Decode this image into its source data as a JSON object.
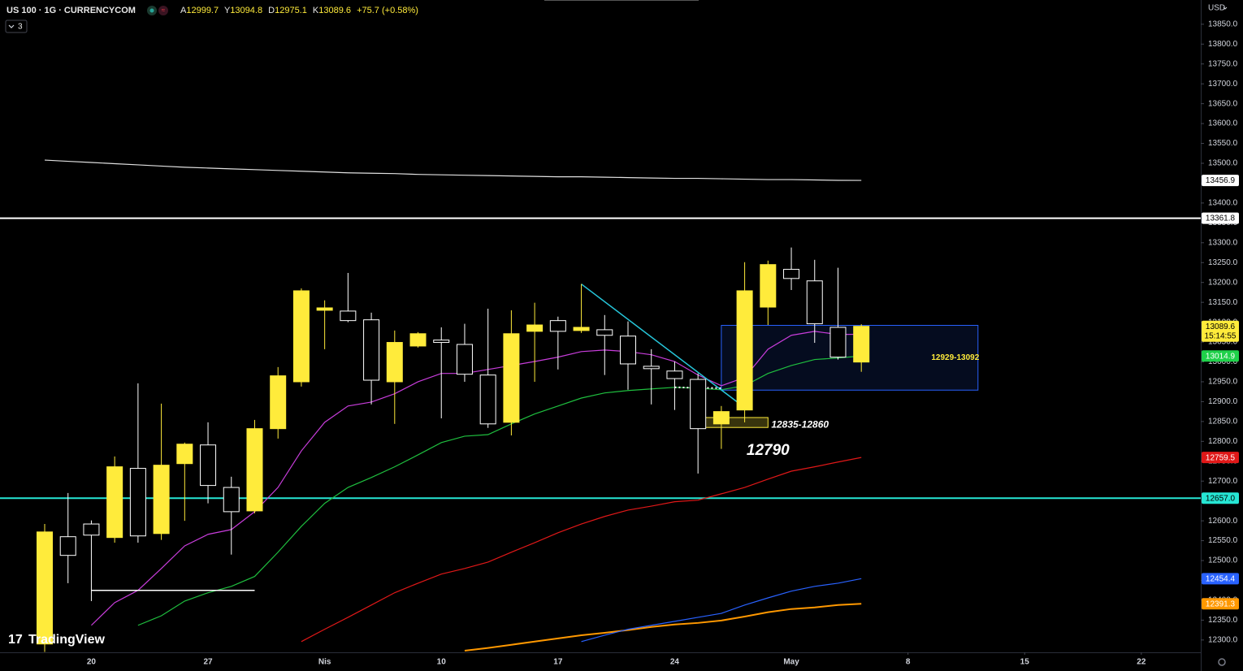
{
  "chart_data": {
    "type": "candlestick",
    "symbol": "US 100 · 1G · CURRENCYCOM",
    "ohlc_labels": [
      "A",
      "Y",
      "D",
      "K"
    ],
    "change": "+75.7 (+0.58%)",
    "indicator_count": "3",
    "currency": "USD",
    "countdown": "15:14:55",
    "logo": "TradingView",
    "categories": [
      null,
      null,
      "20",
      null,
      null,
      null,
      null,
      "27",
      null,
      null,
      null,
      null,
      "Nis",
      null,
      null,
      null,
      null,
      "10",
      null,
      null,
      null,
      null,
      "17",
      null,
      null,
      null,
      null,
      "24",
      null,
      null,
      null,
      null,
      "May",
      null,
      null,
      null
    ],
    "xticks_future": [
      {
        "value": 37,
        "label": "8"
      },
      {
        "value": 42,
        "label": "15"
      },
      {
        "value": 47,
        "label": "22"
      }
    ],
    "candles": {
      "open": [
        12290,
        12560,
        12592,
        12558,
        12732,
        12568,
        12744,
        12791,
        12684,
        12625,
        12832,
        12950,
        13130,
        13128,
        13106,
        12950,
        13040,
        13055,
        13044,
        12967,
        12848,
        13077,
        13104,
        13079,
        13081,
        13065,
        12989,
        12977,
        12956,
        12844,
        12879,
        13138,
        13233,
        13204,
        13087,
        12999.7
      ],
      "high": [
        12592,
        12670,
        12601,
        12762,
        12946,
        12895,
        12797,
        12848,
        12711,
        12854,
        12987,
        13185,
        13155,
        13224,
        13124,
        13079,
        13075,
        13087,
        13096,
        13134,
        13130,
        13149,
        13114,
        13196,
        13118,
        13102,
        13032,
        13001,
        12971,
        12889,
        13251,
        13255,
        13288,
        13257,
        13237,
        13094.8
      ],
      "low": [
        12270,
        12443,
        12398,
        12545,
        12545,
        12552,
        12600,
        12644,
        12515,
        12619,
        12807,
        12938,
        13032,
        13100,
        12893,
        12844,
        13036,
        12858,
        12950,
        12834,
        12815,
        12950,
        12981,
        13073,
        12967,
        12930,
        12893,
        12879,
        12719,
        12781,
        12848,
        13093,
        13181,
        13048,
        13006,
        12975.1
      ],
      "close": [
        12572,
        12513,
        12564,
        12736,
        12562,
        12740,
        12793,
        12689,
        12623,
        12832,
        12965,
        13179,
        13136,
        13104,
        12954,
        13049,
        13071,
        13049,
        12969,
        12844,
        13071,
        13093,
        13077,
        13087,
        13067,
        12995,
        12983,
        12958,
        12832,
        12875,
        13179,
        13245,
        13210,
        13096,
        13012,
        13089.6
      ],
      "up_color": "#ffeb3b",
      "down_color": "#ffffff"
    },
    "series": [
      {
        "color": "#e0e0e0",
        "label_bg": "#ffffff",
        "values": [
          13508,
          13505,
          13502,
          13499,
          13496,
          13493,
          13490,
          13488,
          13486,
          13484,
          13482,
          13480,
          13478,
          13476,
          13475,
          13474,
          13472,
          13471,
          13470,
          13469,
          13468,
          13467,
          13466,
          13466,
          13465,
          13464,
          13463,
          13462,
          13462,
          13461,
          13460,
          13459,
          13459,
          13458,
          13457,
          13456.9
        ]
      },
      {
        "color": "#c83ddb",
        "label_bg": "#e040fb",
        "values": [
          null,
          null,
          12337,
          12394,
          12425,
          12480,
          12537,
          12566,
          12578,
          12623,
          12684,
          12776,
          12848,
          12889,
          12899,
          12920,
          12950,
          12971,
          12971,
          12981,
          12991,
          13001,
          13012,
          13026,
          13030,
          13026,
          13018,
          13001,
          12967,
          12940,
          12961,
          13032,
          13067,
          13077,
          13069,
          13069.7
        ]
      },
      {
        "color": "#1fbf3f",
        "label_bg": "#1fd14a",
        "values": [
          null,
          null,
          null,
          null,
          12337,
          12361,
          12398,
          12419,
          12435,
          12460,
          12521,
          12586,
          12644,
          12684,
          12709,
          12736,
          12766,
          12797,
          12813,
          12817,
          12844,
          12869,
          12889,
          12909,
          12922,
          12928,
          12932,
          12936,
          12934,
          12930,
          12940,
          12971,
          12991,
          13006,
          13010,
          13014.9
        ]
      },
      {
        "color": "#e01818",
        "label_bg": "#e01818",
        "values": [
          null,
          null,
          null,
          null,
          null,
          null,
          null,
          null,
          null,
          null,
          null,
          12296,
          12327,
          12357,
          12388,
          12419,
          12443,
          12466,
          12480,
          12496,
          12521,
          12545,
          12570,
          12592,
          12611,
          12627,
          12637,
          12648,
          12652,
          12668,
          12684,
          12705,
          12725,
          12736,
          12748,
          12759.5
        ]
      },
      {
        "color": "#ff9800",
        "label_bg": "#ff9800",
        "values": [
          null,
          null,
          null,
          null,
          null,
          null,
          null,
          null,
          null,
          null,
          null,
          null,
          null,
          null,
          null,
          null,
          null,
          null,
          12273,
          12280,
          12288,
          12296,
          12304,
          12312,
          12318,
          12325,
          12333,
          12339,
          12343,
          12349,
          12359,
          12370,
          12378,
          12382,
          12388,
          12391.3
        ]
      },
      {
        "color": "#2962ff",
        "label_bg": "#2962ff",
        "values": [
          null,
          null,
          null,
          null,
          null,
          null,
          null,
          null,
          null,
          null,
          null,
          null,
          null,
          null,
          null,
          null,
          null,
          null,
          null,
          null,
          null,
          null,
          null,
          12296,
          12312,
          12327,
          12337,
          12347,
          12357,
          12367,
          12388,
          12406,
          12423,
          12435,
          12443,
          12454.4
        ]
      }
    ],
    "levels": [
      {
        "value": 13361.8,
        "color": "#ffffff"
      },
      {
        "value": 12657,
        "label": "12657.0",
        "color": "#26e6d4"
      }
    ],
    "zones": [
      {
        "label": "12929-13092",
        "low": 12929,
        "high": 13092,
        "start": 29,
        "end": 40,
        "color": "#2962ff"
      },
      {
        "label": "12835-12860",
        "low": 12835,
        "high": 12860,
        "start": 28,
        "end": 31,
        "color": "#ffeb3b"
      }
    ],
    "annotations": [
      {
        "text": 12790,
        "x": 31
      }
    ],
    "segments": [
      {
        "x": [
          23,
          30
        ],
        "y": [
          13196,
          12885
        ],
        "color": "#26c6da",
        "dash": false
      },
      {
        "x": [
          27,
          29
        ],
        "y": [
          12936,
          12934
        ],
        "color": "#ffffff",
        "dash": true
      },
      {
        "x": [
          2,
          9
        ],
        "y": [
          12425,
          12425
        ],
        "color": "#ffffff",
        "dash": false
      }
    ],
    "ylim": [
      12269,
      13911
    ],
    "yticks": [
      {
        "value": 12300,
        "label": "12300.0"
      },
      {
        "value": 12350,
        "label": "12350.0"
      },
      {
        "value": 12400,
        "label": "12400.0"
      },
      {
        "value": 12450,
        "label": "12450.0"
      },
      {
        "value": 12500,
        "label": "12500.0"
      },
      {
        "value": 12550,
        "label": "12550.0"
      },
      {
        "value": 12600,
        "label": "12600.0"
      },
      {
        "value": 12650,
        "label": "12650.0"
      },
      {
        "value": 12700,
        "label": "12700.0"
      },
      {
        "value": 12750,
        "label": "12750.0"
      },
      {
        "value": 12800,
        "label": "12800.0"
      },
      {
        "value": 12850,
        "label": "12850.0"
      },
      {
        "value": 12900,
        "label": "12900.0"
      },
      {
        "value": 12950,
        "label": "12950.0"
      },
      {
        "value": 13000,
        "label": "13000.0"
      },
      {
        "value": 13050,
        "label": "13050.0"
      },
      {
        "value": 13100,
        "label": "13100.0"
      },
      {
        "value": 13150,
        "label": "13150.0"
      },
      {
        "value": 13200,
        "label": "13200.0"
      },
      {
        "value": 13250,
        "label": "13250.0"
      },
      {
        "value": 13300,
        "label": "13300.0"
      },
      {
        "value": 13350,
        "label": "13350.0"
      },
      {
        "value": 13400,
        "label": "13400.0"
      },
      {
        "value": 13450,
        "label": "13450.0"
      },
      {
        "value": 13500,
        "label": "13500.0"
      },
      {
        "value": 13550,
        "label": "13550.0"
      },
      {
        "value": 13600,
        "label": "13600.0"
      },
      {
        "value": 13650,
        "label": "13650.0"
      },
      {
        "value": 13700,
        "label": "13700.0"
      },
      {
        "value": 13750,
        "label": "13750.0"
      },
      {
        "value": 13800,
        "label": "13800.0"
      },
      {
        "value": 13850,
        "label": "13850.0"
      }
    ],
    "grid": false
  }
}
